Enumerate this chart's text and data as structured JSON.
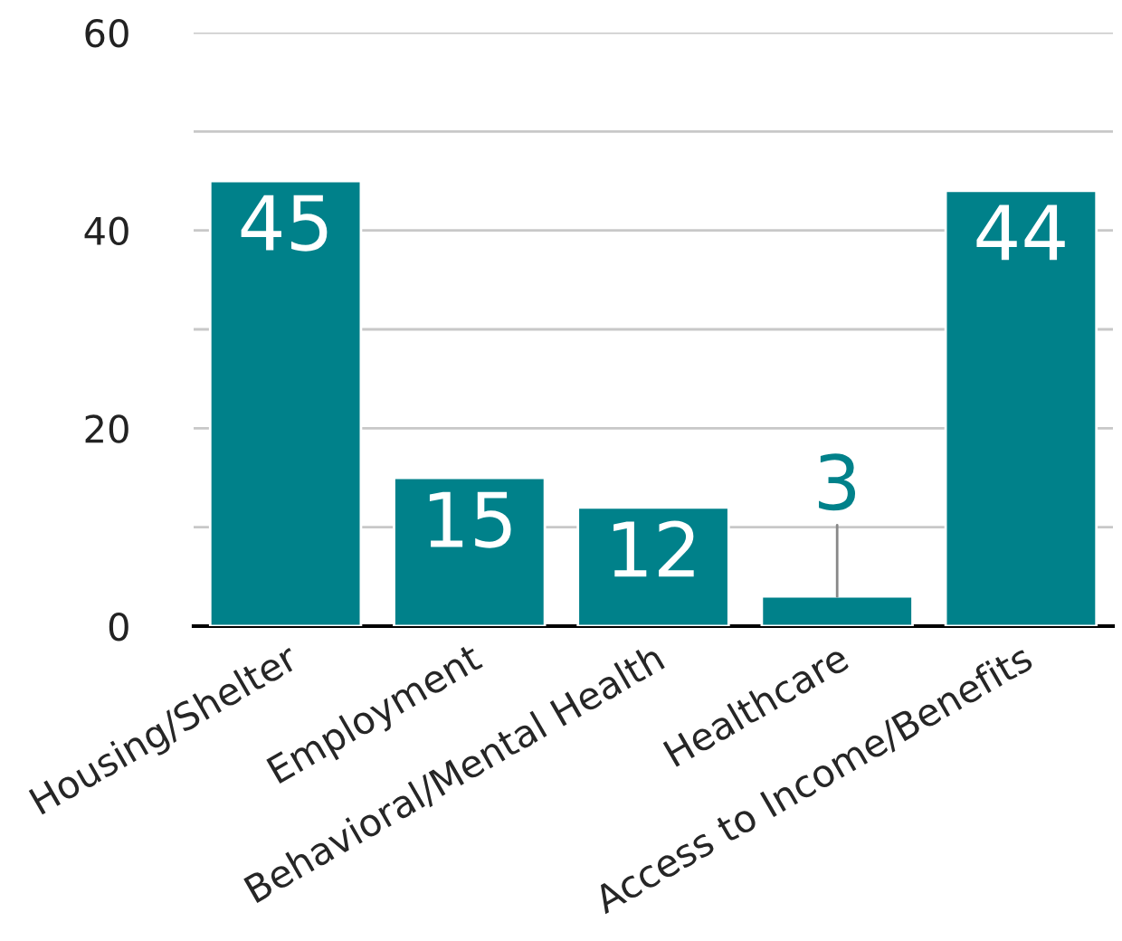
{
  "chart_data": {
    "type": "bar",
    "categories": [
      "Housing/Shelter",
      "Employment",
      "Behavioral/Mental Health",
      "Healthcare",
      "Access to Income/Benefits"
    ],
    "values": [
      45,
      15,
      12,
      3,
      44
    ],
    "color": "#00818a",
    "ylim": [
      0,
      60
    ],
    "yticks": [
      0,
      {
        "value": 10,
        "label": null
      },
      20,
      {
        "value": 30,
        "label": null
      },
      40,
      {
        "value": 50,
        "label": null
      },
      60
    ],
    "grid": "y",
    "data_labels": true
  }
}
